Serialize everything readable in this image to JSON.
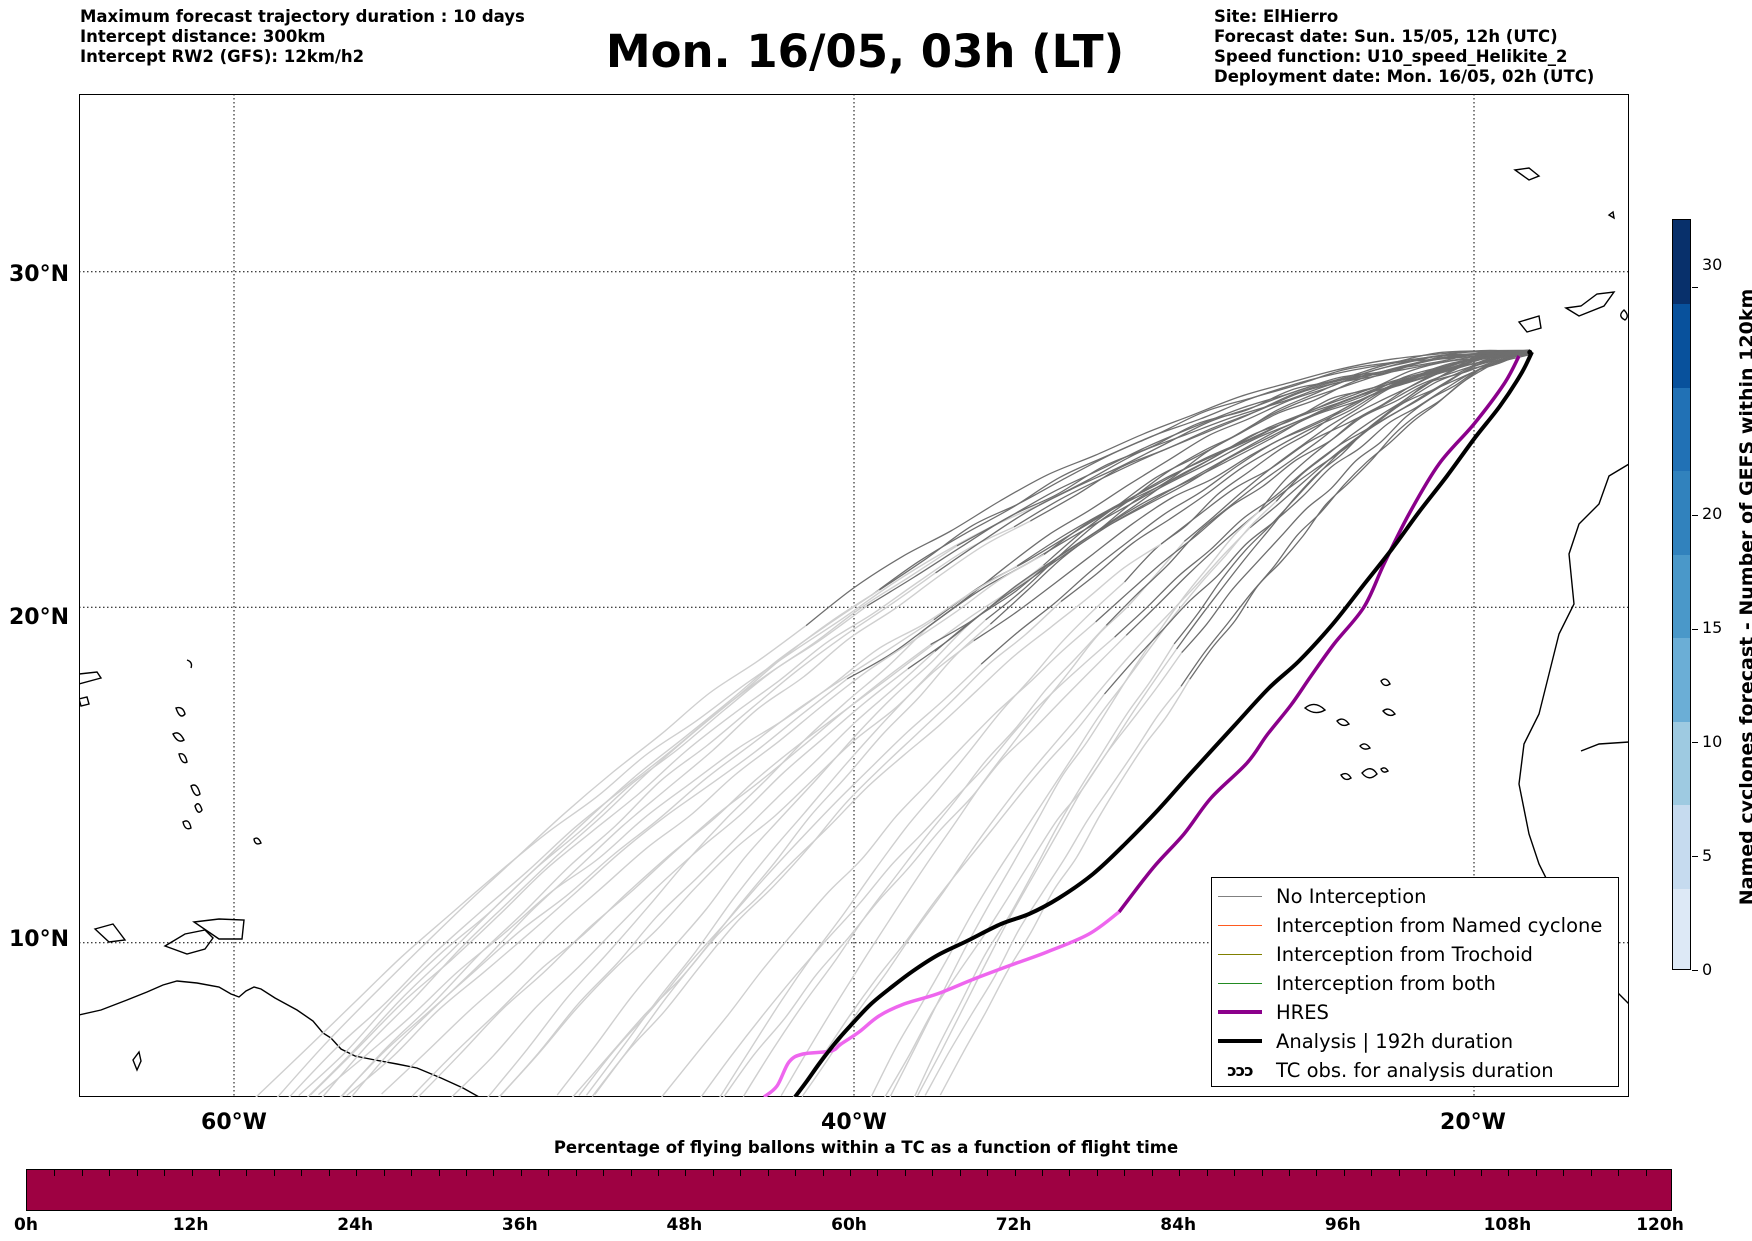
{
  "header": {
    "info_left": [
      "Maximum forecast trajectory duration : 10 days",
      "Intercept distance: 300km",
      "Intercept RW2 (GFS):  12km/h2"
    ],
    "title": "Mon. 16/05, 03h (LT)",
    "info_right": [
      "Site: ElHierro",
      "Forecast date: Sun. 15/05, 12h (UTC)",
      "Speed function: U10_speed_Helikite_2",
      "Deployment date: Mon. 16/05, 02h (UTC)"
    ]
  },
  "map": {
    "lat_labels": [
      "30°N",
      "20°N",
      "10°N"
    ],
    "lon_labels": [
      "60°W",
      "40°W",
      "20°W"
    ],
    "extent": {
      "lon_min": -65,
      "lon_max": -15,
      "lat_min": 5.4,
      "lat_max": 35.3
    },
    "grid_lons": [
      -60,
      -40,
      -20
    ],
    "grid_lats": [
      30,
      20,
      10
    ],
    "site_lon": -18.2,
    "site_lat": 27.6,
    "colors": {
      "ensemble_dark": "#6e6e6e",
      "ensemble_light": "#cfcfcf",
      "hres": "#8b008b",
      "hres_extension": "#ee66ee",
      "analysis": "#000000"
    }
  },
  "legend": {
    "items": [
      {
        "label": "No Interception",
        "color": "#808080",
        "width": 1.3
      },
      {
        "label": "Interception from Named cyclone",
        "color": "#ff5a1f",
        "width": 1.3
      },
      {
        "label": "Interception from Trochoid",
        "color": "#808000",
        "width": 1.3
      },
      {
        "label": "Interception from both",
        "color": "#228b22",
        "width": 1.3
      },
      {
        "label": "HRES",
        "color": "#8b008b",
        "width": 4
      },
      {
        "label": "Analysis | 192h duration",
        "color": "#000000",
        "width": 4
      }
    ],
    "tc_symbol": "ↄↄↄ",
    "tc_label": "TC obs. for analysis duration"
  },
  "colorbar": {
    "title": "Named cyclones forecast - Number of GEFS within 120km",
    "ticks": [
      "0",
      "5",
      "10",
      "15",
      "20",
      "30"
    ],
    "tick_values": [
      0,
      5,
      10,
      15,
      20,
      30
    ],
    "max": 33,
    "colors": [
      "#dde9f6",
      "#c6dbef",
      "#9ecae1",
      "#6baed6",
      "#4a98c9",
      "#3182bd",
      "#2171b5",
      "#08519c",
      "#08306b"
    ]
  },
  "timebar": {
    "title": "Percentage of flying ballons within a TC as a function of flight time",
    "labels": [
      "0h",
      "12h",
      "24h",
      "36h",
      "48h",
      "60h",
      "72h",
      "84h",
      "96h",
      "108h",
      "120h"
    ],
    "fill_color": "#9e0142"
  }
}
